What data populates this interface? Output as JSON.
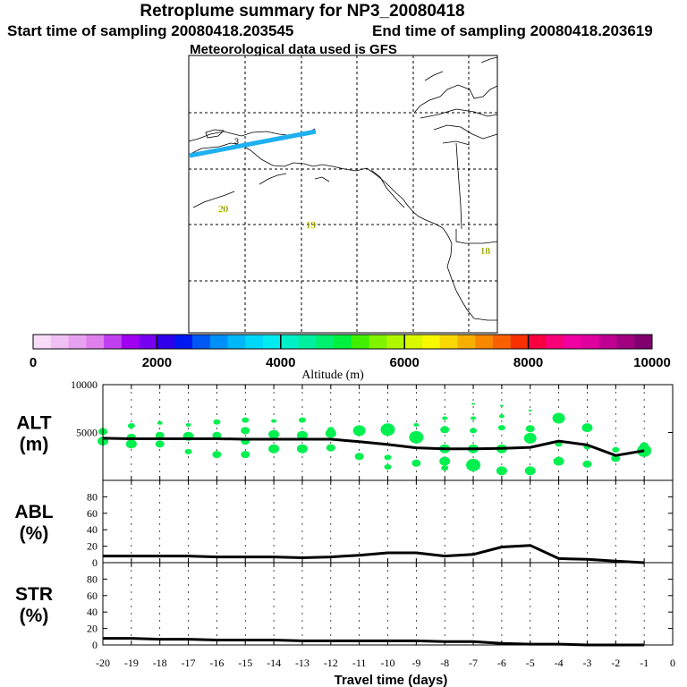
{
  "header": {
    "title": "Retroplume summary for NP3_20080418",
    "start_label": "Start time of sampling 20080418.203545",
    "end_label": "End time of sampling 20080418.203619",
    "met_label": "Meteorological data used is GFS"
  },
  "map": {
    "day_labels": [
      "20",
      "19",
      "18"
    ],
    "trajectory_color": "#1eb0f0",
    "trajectory_start_label": "3"
  },
  "colorbar": {
    "title": "Altitude (m)",
    "tick_labels": [
      "0",
      "2000",
      "4000",
      "6000",
      "8000",
      "10000"
    ],
    "range": [
      0,
      10000
    ],
    "colors": [
      "#f8dcf8",
      "#f0c0f4",
      "#e8a0f0",
      "#e080ec",
      "#c040f0",
      "#a000f0",
      "#7800f0",
      "#3000e8",
      "#0018f0",
      "#0058f4",
      "#0090f8",
      "#00b8f8",
      "#00d8f8",
      "#00ecf0",
      "#00f0c8",
      "#00f0a0",
      "#00f070",
      "#00f040",
      "#40f000",
      "#80f400",
      "#b0f800",
      "#d8f800",
      "#f8f800",
      "#f8d800",
      "#f8b000",
      "#f88800",
      "#f86000",
      "#f83000",
      "#f80040",
      "#f80078",
      "#f000a0",
      "#e000a0",
      "#c00090",
      "#a00080",
      "#800070"
    ]
  },
  "chart_data": [
    {
      "type": "line",
      "name": "ALT",
      "ylabel": "ALT\n(m)",
      "ylabel_lines": [
        "ALT",
        "(m)"
      ],
      "xlabel": "Travel time (days)",
      "ylim": [
        0,
        10000
      ],
      "xlim": [
        -20,
        0
      ],
      "yticks": [
        5000,
        10000
      ],
      "ytick_labels": [
        "5000",
        "10000"
      ],
      "x": [
        -20,
        -19,
        -18,
        -17,
        -16,
        -15,
        -14,
        -13,
        -12,
        -11,
        -10,
        -9,
        -8,
        -7,
        -6,
        -5,
        -4,
        -3,
        -2,
        -1
      ],
      "values": [
        4400,
        4350,
        4350,
        4350,
        4350,
        4300,
        4300,
        4300,
        4300,
        4050,
        3750,
        3400,
        3300,
        3300,
        3350,
        3450,
        4100,
        3700,
        2600,
        3100
      ],
      "scatter_color": "#00f050",
      "clusters": [
        {
          "x": -20,
          "y": 5100,
          "r": 4
        },
        {
          "x": -20,
          "y": 4100,
          "r": 5
        },
        {
          "x": -19,
          "y": 5700,
          "r": 3
        },
        {
          "x": -19,
          "y": 4500,
          "r": 4
        },
        {
          "x": -19,
          "y": 3800,
          "r": 5
        },
        {
          "x": -18,
          "y": 6000,
          "r": 2
        },
        {
          "x": -18,
          "y": 4700,
          "r": 4
        },
        {
          "x": -18,
          "y": 3800,
          "r": 4
        },
        {
          "x": -17,
          "y": 5800,
          "r": 2
        },
        {
          "x": -17,
          "y": 4600,
          "r": 5
        },
        {
          "x": -17,
          "y": 3000,
          "r": 3
        },
        {
          "x": -16,
          "y": 6100,
          "r": 3
        },
        {
          "x": -16,
          "y": 4700,
          "r": 4
        },
        {
          "x": -16,
          "y": 2700,
          "r": 4
        },
        {
          "x": -15,
          "y": 6300,
          "r": 3
        },
        {
          "x": -15,
          "y": 5200,
          "r": 4
        },
        {
          "x": -15,
          "y": 4100,
          "r": 4
        },
        {
          "x": -15,
          "y": 2700,
          "r": 4
        },
        {
          "x": -14,
          "y": 6200,
          "r": 2
        },
        {
          "x": -14,
          "y": 4800,
          "r": 5
        },
        {
          "x": -14,
          "y": 3300,
          "r": 5
        },
        {
          "x": -13,
          "y": 6300,
          "r": 3
        },
        {
          "x": -13,
          "y": 4700,
          "r": 5
        },
        {
          "x": -13,
          "y": 3300,
          "r": 5
        },
        {
          "x": -12,
          "y": 5300,
          "r": 3
        },
        {
          "x": -12,
          "y": 4900,
          "r": 5
        },
        {
          "x": -12,
          "y": 3400,
          "r": 4
        },
        {
          "x": -11,
          "y": 5500,
          "r": 2
        },
        {
          "x": -11,
          "y": 5200,
          "r": 6
        },
        {
          "x": -11,
          "y": 2500,
          "r": 4
        },
        {
          "x": -10,
          "y": 5500,
          "r": 2
        },
        {
          "x": -10,
          "y": 5300,
          "r": 7
        },
        {
          "x": -10,
          "y": 2400,
          "r": 3
        },
        {
          "x": -10,
          "y": 1400,
          "r": 3
        },
        {
          "x": -9,
          "y": 5800,
          "r": 2
        },
        {
          "x": -9,
          "y": 4500,
          "r": 7
        },
        {
          "x": -9,
          "y": 1800,
          "r": 4
        },
        {
          "x": -8,
          "y": 6500,
          "r": 2
        },
        {
          "x": -8,
          "y": 5300,
          "r": 4
        },
        {
          "x": -8,
          "y": 3300,
          "r": 5
        },
        {
          "x": -8,
          "y": 2000,
          "r": 5
        },
        {
          "x": -8,
          "y": 1300,
          "r": 3
        },
        {
          "x": -7,
          "y": 8000,
          "r": 1
        },
        {
          "x": -7,
          "y": 6500,
          "r": 2
        },
        {
          "x": -7,
          "y": 5200,
          "r": 3
        },
        {
          "x": -7,
          "y": 3300,
          "r": 5
        },
        {
          "x": -7,
          "y": 1600,
          "r": 7
        },
        {
          "x": -6,
          "y": 7800,
          "r": 1
        },
        {
          "x": -6,
          "y": 6700,
          "r": 2
        },
        {
          "x": -6,
          "y": 5500,
          "r": 3
        },
        {
          "x": -6,
          "y": 3300,
          "r": 5
        },
        {
          "x": -6,
          "y": 1000,
          "r": 5
        },
        {
          "x": -5,
          "y": 7300,
          "r": 1
        },
        {
          "x": -5,
          "y": 5400,
          "r": 4
        },
        {
          "x": -5,
          "y": 4400,
          "r": 6
        },
        {
          "x": -5,
          "y": 1000,
          "r": 5
        },
        {
          "x": -4,
          "y": 6500,
          "r": 6
        },
        {
          "x": -4,
          "y": 3800,
          "r": 3
        },
        {
          "x": -4,
          "y": 2000,
          "r": 5
        },
        {
          "x": -3,
          "y": 5500,
          "r": 5
        },
        {
          "x": -3,
          "y": 3500,
          "r": 3
        },
        {
          "x": -3,
          "y": 1700,
          "r": 4
        },
        {
          "x": -2,
          "y": 3200,
          "r": 3
        },
        {
          "x": -2,
          "y": 2300,
          "r": 4
        },
        {
          "x": -1,
          "y": 3600,
          "r": 4
        },
        {
          "x": -1,
          "y": 3100,
          "r": 7
        }
      ]
    },
    {
      "type": "line",
      "name": "ABL",
      "ylabel": "ABL\n(%)",
      "ylabel_lines": [
        "ABL",
        "(%)"
      ],
      "ylim": [
        0,
        100
      ],
      "xlim": [
        -20,
        0
      ],
      "yticks": [
        0,
        20,
        40,
        60,
        80
      ],
      "ytick_labels": [
        "0",
        "20",
        "40",
        "60",
        "80"
      ],
      "x": [
        -20,
        -19,
        -18,
        -17,
        -16,
        -15,
        -14,
        -13,
        -12,
        -11,
        -10,
        -9,
        -8,
        -7,
        -6,
        -5,
        -4,
        -3,
        -2,
        -1
      ],
      "values": [
        8,
        8,
        8,
        8,
        7,
        7,
        7,
        6,
        7,
        9,
        12,
        12,
        8,
        10,
        19,
        21,
        5,
        4,
        2,
        0
      ]
    },
    {
      "type": "line",
      "name": "STR",
      "ylabel": "STR\n(%)",
      "ylabel_lines": [
        "STR",
        "(%)"
      ],
      "ylim": [
        0,
        100
      ],
      "xlim": [
        -20,
        0
      ],
      "yticks": [
        0,
        20,
        40,
        60,
        80
      ],
      "ytick_labels": [
        "0",
        "20",
        "40",
        "60",
        "80"
      ],
      "x": [
        -20,
        -19,
        -18,
        -17,
        -16,
        -15,
        -14,
        -13,
        -12,
        -11,
        -10,
        -9,
        -8,
        -7,
        -6,
        -5,
        -4,
        -3,
        -2,
        -1
      ],
      "values": [
        8,
        8,
        7,
        7,
        6,
        6,
        6,
        5,
        5,
        5,
        5,
        5,
        4,
        4,
        2,
        1,
        1,
        0,
        0,
        0
      ]
    }
  ],
  "xaxis": {
    "label": "Travel time (days)",
    "ticks": [
      -20,
      -19,
      -18,
      -17,
      -16,
      -15,
      -14,
      -13,
      -12,
      -11,
      -10,
      -9,
      -8,
      -7,
      -6,
      -5,
      -4,
      -3,
      -2,
      -1,
      0
    ],
    "tick_labels": [
      "-20",
      "-19",
      "-18",
      "-17",
      "-16",
      "-15",
      "-14",
      "-13",
      "-12",
      "-11",
      "-10",
      "-9",
      "-8",
      "-7",
      "-6",
      "-5",
      "-4",
      "-3",
      "-2",
      "-1",
      "0"
    ]
  }
}
